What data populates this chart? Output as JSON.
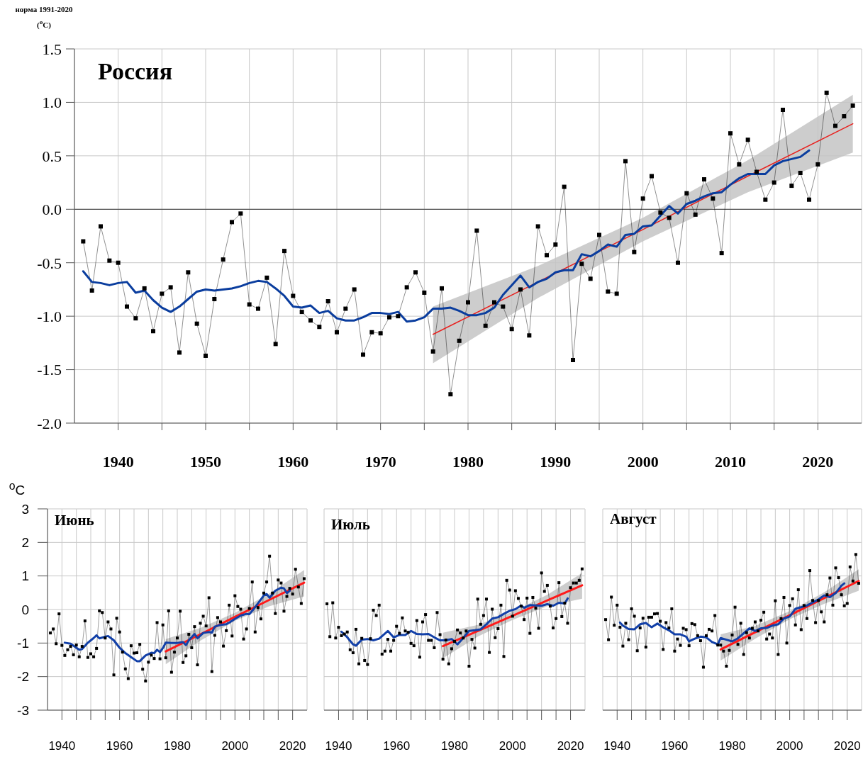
{
  "chart_data": [
    {
      "type": "line",
      "title": "Россия",
      "ylabel": "норма 1991-2020 ($^{o}$C)",
      "xlim": [
        1935,
        2025
      ],
      "ylim": [
        -2,
        1.5
      ],
      "xticks": [
        1940,
        {
          "value": 1945,
          "label": null
        },
        1950,
        {
          "value": 1955,
          "label": null
        },
        1960,
        {
          "value": 1965,
          "label": null
        },
        1970,
        {
          "value": 1975,
          "label": null
        },
        1980,
        {
          "value": 1985,
          "label": null
        },
        1990,
        {
          "value": 1995,
          "label": null
        },
        2000,
        {
          "value": 2005,
          "label": null
        },
        2010,
        {
          "value": 2015,
          "label": null
        },
        2020
      ],
      "yticks": [
        1.5,
        {
          "value": 1,
          "label": "1.0"
        },
        0.5,
        {
          "value": 0,
          "label": "0.0"
        },
        -0.5,
        {
          "value": -1,
          "label": "-1.0"
        },
        -1.5,
        {
          "value": -2,
          "label": "-2.0"
        }
      ],
      "grid": true,
      "ref_lines": [
        {
          "axis": "y",
          "value": 0,
          "color": "#555555"
        }
      ],
      "series": [
        {
          "color": "#000000",
          "marker": "square",
          "x": [
            1936,
            1937,
            1938,
            1939,
            1940,
            1941,
            1942,
            1943,
            1944,
            1945,
            1946,
            1947,
            1948,
            1949,
            1950,
            1951,
            1952,
            1953,
            1954,
            1955,
            1956,
            1957,
            1958,
            1959,
            1960,
            1961,
            1962,
            1963,
            1964,
            1965,
            1966,
            1967,
            1968,
            1969,
            1970,
            1971,
            1972,
            1973,
            1974,
            1975,
            1976,
            1977,
            1978,
            1979,
            1980,
            1981,
            1982,
            1983,
            1984,
            1985,
            1986,
            1987,
            1988,
            1989,
            1990,
            1991,
            1992,
            1993,
            1994,
            1995,
            1996,
            1997,
            1998,
            1999,
            2000,
            2001,
            2002,
            2003,
            2004,
            2005,
            2006,
            2007,
            2008,
            2009,
            2010,
            2011,
            2012,
            2013,
            2014,
            2015,
            2016,
            2017,
            2018,
            2019,
            2020,
            2021,
            2022,
            2023,
            2024
          ],
          "values": [
            -0.3,
            -0.76,
            -0.16,
            -0.48,
            -0.5,
            -0.91,
            -1.02,
            -0.74,
            -1.14,
            -0.79,
            -0.73,
            -1.34,
            -0.59,
            -1.07,
            -1.37,
            -0.84,
            -0.47,
            -0.12,
            -0.04,
            -0.89,
            -0.93,
            -0.64,
            -1.26,
            -0.39,
            -0.81,
            -0.96,
            -1.04,
            -1.1,
            -0.86,
            -1.15,
            -0.93,
            -0.75,
            -1.36,
            -1.15,
            -1.16,
            -1.01,
            -1.0,
            -0.73,
            -0.59,
            -0.78,
            -1.33,
            -0.74,
            -1.73,
            -1.23,
            -0.87,
            -0.2,
            -1.09,
            -0.87,
            -0.91,
            -1.12,
            -0.75,
            -1.18,
            -0.16,
            -0.43,
            -0.33,
            0.21,
            -1.41,
            -0.51,
            -0.65,
            -0.24,
            -0.77,
            -0.79,
            0.45,
            -0.4,
            0.1,
            0.31,
            -0.03,
            -0.08,
            -0.5,
            0.15,
            -0.05,
            0.28,
            0.1,
            -0.41,
            0.71,
            0.42,
            0.65,
            0.35,
            0.09,
            0.25,
            0.93,
            0.22,
            0.34,
            0.09,
            0.42,
            1.09,
            0.78,
            0.87,
            0.97
          ]
        },
        {
          "color": "#e8201e",
          "x": [
            1976,
            1988,
            2000,
            2012,
            2024
          ],
          "values": [
            -1.17,
            -0.68,
            -0.19,
            0.31,
            0.8
          ],
          "lower": [
            -1.44,
            -0.83,
            -0.3,
            0.16,
            0.53
          ],
          "upper": [
            -0.91,
            -0.53,
            -0.08,
            0.46,
            1.07
          ]
        },
        {
          "color": "#0a3d9e",
          "x": [
            1936,
            1937,
            1938,
            1939,
            1940,
            1941,
            1942,
            1943,
            1944,
            1945,
            1946,
            1947,
            1948,
            1949,
            1950,
            1951,
            1952,
            1953,
            1954,
            1955,
            1956,
            1957,
            1958,
            1959,
            1960,
            1961,
            1962,
            1963,
            1964,
            1965,
            1966,
            1967,
            1968,
            1969,
            1970,
            1971,
            1972,
            1973,
            1974,
            1975,
            1976,
            1977,
            1978,
            1979,
            1980,
            1981,
            1982,
            1983,
            1984,
            1985,
            1986,
            1987,
            1988,
            1989,
            1990,
            1991,
            1992,
            1993,
            1994,
            1995,
            1996,
            1997,
            1998,
            1999,
            2000,
            2001,
            2002,
            2003,
            2004,
            2005,
            2006,
            2007,
            2008,
            2009,
            2010,
            2011,
            2012,
            2013,
            2014,
            2015,
            2016,
            2017,
            2018,
            2019
          ],
          "values": [
            -0.58,
            -0.68,
            -0.69,
            -0.71,
            -0.69,
            -0.68,
            -0.78,
            -0.76,
            -0.85,
            -0.92,
            -0.96,
            -0.91,
            -0.84,
            -0.77,
            -0.75,
            -0.76,
            -0.75,
            -0.74,
            -0.72,
            -0.69,
            -0.67,
            -0.68,
            -0.74,
            -0.81,
            -0.91,
            -0.92,
            -0.9,
            -0.97,
            -0.95,
            -1.02,
            -1.04,
            -1.04,
            -1.01,
            -0.97,
            -0.97,
            -0.98,
            -0.96,
            -1.05,
            -1.04,
            -1.01,
            -0.93,
            -0.93,
            -0.92,
            -0.95,
            -0.99,
            -0.99,
            -0.97,
            -0.92,
            -0.8,
            -0.71,
            -0.62,
            -0.73,
            -0.68,
            -0.65,
            -0.59,
            -0.57,
            -0.57,
            -0.42,
            -0.44,
            -0.39,
            -0.33,
            -0.35,
            -0.24,
            -0.23,
            -0.16,
            -0.15,
            -0.06,
            0.03,
            -0.04,
            0.05,
            0.08,
            0.12,
            0.15,
            0.16,
            0.23,
            0.29,
            0.33,
            0.33,
            0.33,
            0.41,
            0.45,
            0.47,
            0.49,
            0.55
          ]
        }
      ]
    },
    {
      "type": "line",
      "title": "Июнь",
      "ylabel": "$^{o}$C",
      "xlim": [
        1935,
        2025
      ],
      "ylim": [
        -3,
        3
      ],
      "xticks": [
        1940,
        {
          "value": 1945,
          "label": null
        },
        {
          "value": 1950,
          "label": null
        },
        {
          "value": 1955,
          "label": null
        },
        1960,
        {
          "value": 1965,
          "label": null
        },
        {
          "value": 1970,
          "label": null
        },
        {
          "value": 1975,
          "label": null
        },
        1980,
        {
          "value": 1985,
          "label": null
        },
        {
          "value": 1990,
          "label": null
        },
        {
          "value": 1995,
          "label": null
        },
        2000,
        {
          "value": 2005,
          "label": null
        },
        {
          "value": 2010,
          "label": null
        },
        {
          "value": 2015,
          "label": null
        },
        2020
      ],
      "yticks": [
        -3,
        -2,
        -1,
        0,
        1,
        2,
        3
      ],
      "grid": true,
      "series": [
        {
          "color": "#000000",
          "marker": "square",
          "x": [
            1936,
            1937,
            1938,
            1939,
            1940,
            1941,
            1942,
            1943,
            1944,
            1945,
            1946,
            1947,
            1948,
            1949,
            1950,
            1951,
            1952,
            1953,
            1954,
            1955,
            1956,
            1957,
            1958,
            1959,
            1960,
            1961,
            1962,
            1963,
            1964,
            1965,
            1966,
            1967,
            1968,
            1969,
            1970,
            1971,
            1972,
            1973,
            1974,
            1975,
            1976,
            1977,
            1978,
            1979,
            1980,
            1981,
            1982,
            1983,
            1984,
            1985,
            1986,
            1987,
            1988,
            1989,
            1990,
            1991,
            1992,
            1993,
            1994,
            1995,
            1996,
            1997,
            1998,
            1999,
            2000,
            2001,
            2002,
            2003,
            2004,
            2005,
            2006,
            2007,
            2008,
            2009,
            2010,
            2011,
            2012,
            2013,
            2014,
            2015,
            2016,
            2017,
            2018,
            2019,
            2020,
            2021,
            2022,
            2023,
            2024
          ],
          "values": [
            -0.7,
            -0.58,
            -1.02,
            -0.13,
            -1.07,
            -1.37,
            -1.2,
            -1.1,
            -1.35,
            -1.06,
            -1.41,
            -1.1,
            -0.34,
            -1.43,
            -1.32,
            -1.41,
            -1.16,
            -0.04,
            -0.09,
            -0.85,
            -0.37,
            -0.58,
            -1.95,
            -0.26,
            -0.67,
            -1.27,
            -1.77,
            -2.06,
            -1.08,
            -1.3,
            -1.29,
            -1.04,
            -1.78,
            -2.13,
            -1.57,
            -1.36,
            -1.46,
            -0.39,
            -1.47,
            -0.46,
            -1.44,
            -0.04,
            -1.87,
            -1.27,
            -0.85,
            -0.05,
            -1.58,
            -1.38,
            -0.74,
            -1.14,
            -0.51,
            -1.65,
            -0.41,
            -0.2,
            -0.49,
            0.35,
            -1.85,
            -0.77,
            -0.24,
            -0.37,
            -1.09,
            -0.63,
            0.13,
            -0.79,
            0.41,
            0.09,
            0.01,
            -0.88,
            -0.58,
            0.03,
            0.82,
            -0.67,
            0.06,
            -0.28,
            0.49,
            0.82,
            1.59,
            0.49,
            -0.12,
            0.88,
            0.79,
            -0.05,
            0.39,
            0.63,
            0.46,
            1.2,
            0.67,
            0.18,
            0.92
          ]
        },
        {
          "color": "#ff1a1a",
          "x": [
            1976,
            1988,
            2000,
            2012,
            2024
          ],
          "values": [
            -1.25,
            -0.74,
            -0.22,
            0.29,
            0.8
          ],
          "lower": [
            -1.63,
            -0.93,
            -0.34,
            0.1,
            0.39
          ],
          "upper": [
            -0.88,
            -0.55,
            -0.1,
            0.48,
            1.18
          ]
        },
        {
          "color": "#1240a8",
          "x": [
            1941,
            1943,
            1945,
            1946,
            1947,
            1949,
            1951,
            1952,
            1953,
            1955,
            1956,
            1958,
            1960,
            1962,
            1964,
            1966,
            1967,
            1969,
            1971,
            1972,
            1973,
            1974,
            1975,
            1976,
            1978,
            1980,
            1982,
            1983,
            1984,
            1986,
            1987,
            1989,
            1991,
            1992,
            1993,
            1995,
            1997,
            1998,
            2000,
            2002,
            2004,
            2005,
            2007,
            2009,
            2010,
            2011,
            2012,
            2014,
            2016,
            2017,
            2018,
            2019
          ],
          "values": [
            -0.99,
            -1.02,
            -1.14,
            -1.2,
            -1.18,
            -0.99,
            -0.85,
            -0.77,
            -0.86,
            -0.81,
            -0.79,
            -0.92,
            -1.14,
            -1.3,
            -1.42,
            -1.54,
            -1.54,
            -1.37,
            -1.29,
            -1.3,
            -1.2,
            -1.27,
            -1.15,
            -0.99,
            -1.0,
            -1.0,
            -0.97,
            -1.06,
            -0.92,
            -0.73,
            -0.86,
            -0.7,
            -0.67,
            -0.69,
            -0.51,
            -0.46,
            -0.44,
            -0.39,
            -0.28,
            -0.18,
            -0.13,
            -0.14,
            0.07,
            0.3,
            0.42,
            0.46,
            0.35,
            0.56,
            0.65,
            0.63,
            0.49,
            0.56
          ]
        }
      ]
    },
    {
      "type": "line",
      "title": "Июль",
      "xlim": [
        1935,
        2025
      ],
      "ylim": [
        -3,
        3
      ],
      "tick_labels": "x",
      "xticks": [
        1940,
        {
          "value": 1945,
          "label": null
        },
        {
          "value": 1950,
          "label": null
        },
        {
          "value": 1955,
          "label": null
        },
        1960,
        {
          "value": 1965,
          "label": null
        },
        {
          "value": 1970,
          "label": null
        },
        {
          "value": 1975,
          "label": null
        },
        1980,
        {
          "value": 1985,
          "label": null
        },
        {
          "value": 1990,
          "label": null
        },
        {
          "value": 1995,
          "label": null
        },
        2000,
        {
          "value": 2005,
          "label": null
        },
        {
          "value": 2010,
          "label": null
        },
        {
          "value": 2015,
          "label": null
        },
        2020
      ],
      "yticks": [
        -3,
        -2,
        -1,
        0,
        1,
        2,
        3
      ],
      "grid": true,
      "series": [
        {
          "color": "#000000",
          "marker": "square",
          "x": [
            1936,
            1937,
            1938,
            1939,
            1940,
            1941,
            1942,
            1943,
            1944,
            1945,
            1946,
            1947,
            1948,
            1949,
            1950,
            1951,
            1952,
            1953,
            1954,
            1955,
            1956,
            1957,
            1958,
            1959,
            1960,
            1961,
            1962,
            1963,
            1964,
            1965,
            1966,
            1967,
            1968,
            1969,
            1970,
            1971,
            1972,
            1973,
            1974,
            1975,
            1976,
            1977,
            1978,
            1979,
            1980,
            1981,
            1982,
            1983,
            1984,
            1985,
            1986,
            1987,
            1988,
            1989,
            1990,
            1991,
            1992,
            1993,
            1994,
            1995,
            1996,
            1997,
            1998,
            1999,
            2000,
            2001,
            2002,
            2003,
            2004,
            2005,
            2006,
            2007,
            2008,
            2009,
            2010,
            2011,
            2012,
            2013,
            2014,
            2015,
            2016,
            2017,
            2018,
            2019,
            2020,
            2021,
            2022,
            2023,
            2024
          ],
          "values": [
            0.17,
            -0.81,
            0.2,
            -0.85,
            -0.53,
            -0.78,
            -0.73,
            -0.67,
            -1.2,
            -1.29,
            -0.59,
            -1.62,
            -0.86,
            -1.52,
            -1.64,
            -0.87,
            -0.02,
            -0.18,
            0.13,
            -1.33,
            -1.24,
            -0.89,
            -1.24,
            -0.92,
            -0.5,
            -0.71,
            -0.25,
            -0.64,
            -0.68,
            -1.01,
            -1.08,
            -0.33,
            -1.42,
            -0.37,
            -0.15,
            -0.92,
            -0.92,
            -1.14,
            -0.09,
            -0.75,
            -1.48,
            -0.91,
            -1.62,
            -1.17,
            -0.95,
            -0.61,
            -0.7,
            -0.85,
            -0.64,
            -1.69,
            -0.89,
            -1.15,
            0.31,
            -0.44,
            -0.18,
            0.31,
            -1.28,
            0.01,
            -0.84,
            -0.57,
            0.13,
            -1.4,
            0.87,
            0.58,
            -0.2,
            0.56,
            0.33,
            0.1,
            -0.3,
            0.34,
            -0.71,
            0.36,
            0.04,
            -0.56,
            1.09,
            0.54,
            0.72,
            0.1,
            -0.55,
            -0.27,
            0.8,
            -0.21,
            0.19,
            -0.41,
            0.65,
            0.79,
            0.79,
            0.87,
            1.21
          ]
        },
        {
          "color": "#ff1a1a",
          "x": [
            1976,
            1988,
            2000,
            2012,
            2024
          ],
          "values": [
            -1.09,
            -0.64,
            -0.19,
            0.27,
            0.72
          ],
          "lower": [
            -1.45,
            -0.81,
            -0.31,
            0.1,
            0.32
          ],
          "upper": [
            -0.69,
            -0.46,
            -0.07,
            0.44,
            1.09
          ]
        },
        {
          "color": "#1240a8",
          "x": [
            1941,
            1943,
            1945,
            1946,
            1948,
            1950,
            1952,
            1954,
            1957,
            1959,
            1961,
            1963,
            1965,
            1967,
            1969,
            1971,
            1973,
            1975,
            1977,
            1979,
            1981,
            1983,
            1985,
            1987,
            1989,
            1991,
            1993,
            1995,
            1997,
            1999,
            2001,
            2003,
            2004,
            2006,
            2008,
            2010,
            2012,
            2014,
            2016,
            2018,
            2019
          ],
          "values": [
            -0.66,
            -0.83,
            -1.04,
            -1.08,
            -0.9,
            -0.88,
            -0.92,
            -0.87,
            -0.64,
            -0.83,
            -0.76,
            -0.76,
            -0.64,
            -0.73,
            -0.74,
            -0.73,
            -0.83,
            -0.92,
            -0.92,
            -0.88,
            -1.04,
            -0.85,
            -0.64,
            -0.62,
            -0.59,
            -0.44,
            -0.27,
            -0.23,
            -0.13,
            -0.04,
            0.01,
            0.12,
            0.05,
            0.13,
            0.12,
            0.11,
            0.16,
            0.11,
            0.2,
            0.18,
            0.33
          ]
        }
      ]
    },
    {
      "type": "line",
      "title": "Август",
      "xlim": [
        1935,
        2025
      ],
      "ylim": [
        -3,
        3
      ],
      "tick_labels": "x",
      "xticks": [
        1940,
        {
          "value": 1945,
          "label": null
        },
        {
          "value": 1950,
          "label": null
        },
        {
          "value": 1955,
          "label": null
        },
        1960,
        {
          "value": 1965,
          "label": null
        },
        {
          "value": 1970,
          "label": null
        },
        {
          "value": 1975,
          "label": null
        },
        1980,
        {
          "value": 1985,
          "label": null
        },
        {
          "value": 1990,
          "label": null
        },
        {
          "value": 1995,
          "label": null
        },
        2000,
        {
          "value": 2005,
          "label": null
        },
        {
          "value": 2010,
          "label": null
        },
        {
          "value": 2015,
          "label": null
        },
        2020
      ],
      "yticks": [
        -3,
        -2,
        -1,
        0,
        1,
        2,
        3
      ],
      "grid": true,
      "series": [
        {
          "color": "#000000",
          "marker": "square",
          "x": [
            1936,
            1937,
            1938,
            1939,
            1940,
            1941,
            1942,
            1943,
            1944,
            1945,
            1946,
            1947,
            1948,
            1949,
            1950,
            1951,
            1952,
            1953,
            1954,
            1955,
            1956,
            1957,
            1958,
            1959,
            1960,
            1961,
            1962,
            1963,
            1964,
            1965,
            1966,
            1967,
            1968,
            1969,
            1970,
            1971,
            1972,
            1973,
            1974,
            1975,
            1976,
            1977,
            1978,
            1979,
            1980,
            1981,
            1982,
            1983,
            1984,
            1985,
            1986,
            1987,
            1988,
            1989,
            1990,
            1991,
            1992,
            1993,
            1994,
            1995,
            1996,
            1997,
            1998,
            1999,
            2000,
            2001,
            2002,
            2003,
            2004,
            2005,
            2006,
            2007,
            2008,
            2009,
            2010,
            2011,
            2012,
            2013,
            2014,
            2015,
            2016,
            2017,
            2018,
            2019,
            2020,
            2021,
            2022,
            2023,
            2024
          ],
          "values": [
            -0.3,
            -0.9,
            0.37,
            -0.47,
            0.13,
            -0.53,
            -1.09,
            -0.41,
            -0.9,
            0.02,
            -0.2,
            -1.23,
            -0.55,
            -0.26,
            -1.12,
            -0.23,
            -0.23,
            -0.13,
            -0.12,
            -0.35,
            -1.19,
            -0.39,
            -0.55,
            0.02,
            -1.24,
            -0.88,
            -1.07,
            -0.56,
            -0.6,
            -1.08,
            -0.42,
            -0.45,
            -0.78,
            -0.93,
            -1.72,
            -0.78,
            -0.59,
            -0.64,
            -0.18,
            -1.06,
            -1.06,
            -1.24,
            -1.69,
            -1.22,
            -0.76,
            0.07,
            -1.04,
            -0.41,
            -1.34,
            -0.69,
            -0.85,
            -0.56,
            -0.37,
            -0.64,
            -0.32,
            -0.08,
            -0.88,
            -0.73,
            -0.85,
            0.26,
            -1.34,
            -0.27,
            0.36,
            -1.0,
            0.12,
            0.32,
            -0.46,
            0.59,
            -0.6,
            0.12,
            -0.27,
            1.16,
            0.27,
            -0.39,
            0.27,
            -0.07,
            -0.37,
            0.44,
            0.94,
            0.13,
            1.24,
            0.95,
            0.44,
            0.11,
            0.18,
            1.27,
            0.85,
            1.64,
            0.78
          ]
        },
        {
          "color": "#ff1a1a",
          "x": [
            1976,
            1988,
            2000,
            2012,
            2024
          ],
          "values": [
            -1.19,
            -0.68,
            -0.17,
            0.34,
            0.85
          ],
          "lower": [
            -1.52,
            -0.87,
            -0.29,
            0.17,
            0.56
          ],
          "upper": [
            -0.74,
            -0.49,
            -0.05,
            0.51,
            1.2
          ]
        },
        {
          "color": "#1240a8",
          "x": [
            1941,
            1942,
            1944,
            1946,
            1948,
            1950,
            1952,
            1954,
            1956,
            1958,
            1960,
            1962,
            1964,
            1965,
            1967,
            1969,
            1971,
            1973,
            1975,
            1976,
            1978,
            1980,
            1982,
            1984,
            1986,
            1988,
            1990,
            1992,
            1994,
            1996,
            1998,
            2000,
            2002,
            2004,
            2006,
            2008,
            2010,
            2012,
            2014,
            2016,
            2018,
            2019
          ],
          "values": [
            -0.39,
            -0.48,
            -0.58,
            -0.59,
            -0.44,
            -0.4,
            -0.53,
            -0.42,
            -0.53,
            -0.62,
            -0.74,
            -0.74,
            -0.81,
            -0.95,
            -0.87,
            -0.81,
            -0.83,
            -0.97,
            -1.04,
            -0.85,
            -0.9,
            -0.95,
            -0.86,
            -0.71,
            -0.56,
            -0.64,
            -0.56,
            -0.55,
            -0.48,
            -0.44,
            -0.27,
            -0.21,
            0.02,
            0.07,
            0.12,
            0.21,
            0.3,
            0.42,
            0.37,
            0.49,
            0.71,
            0.78
          ]
        }
      ]
    }
  ]
}
